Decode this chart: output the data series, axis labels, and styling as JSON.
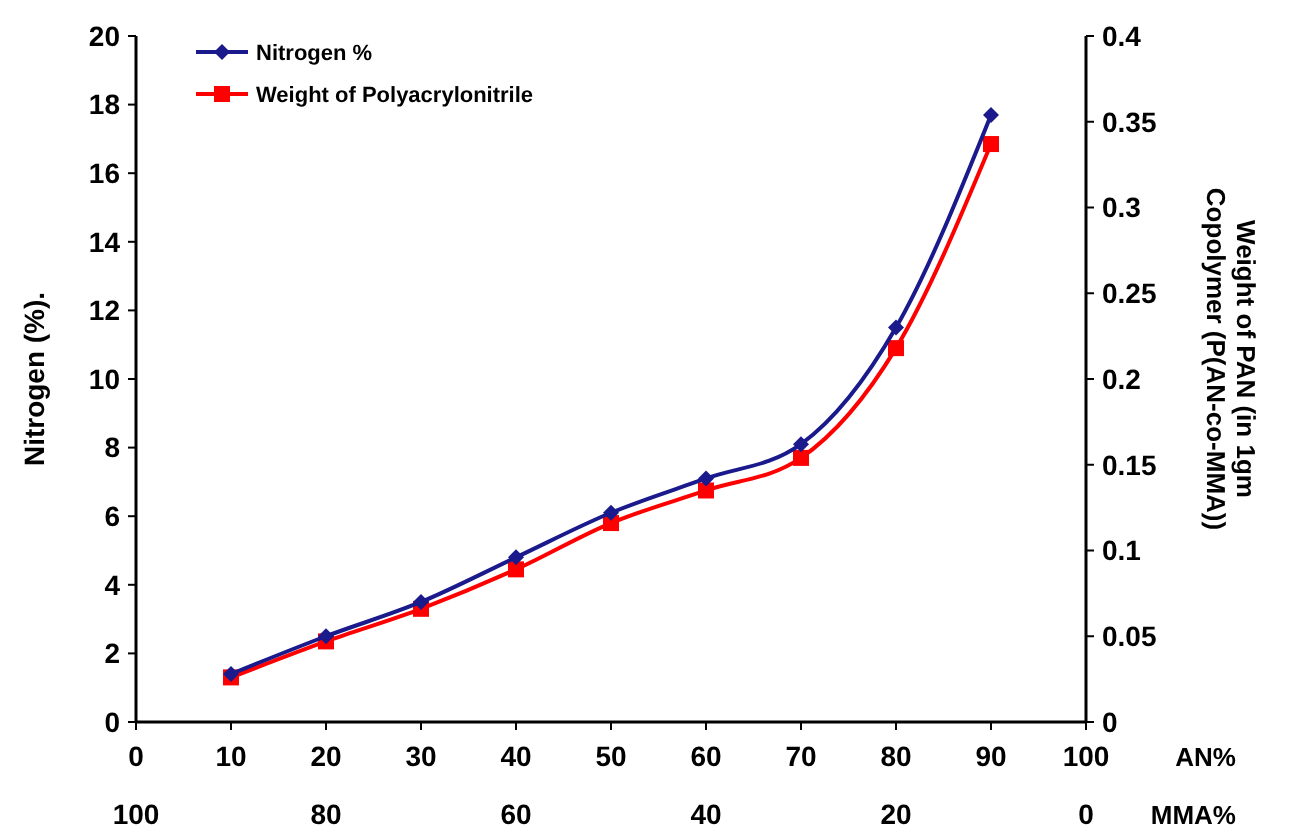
{
  "chart_data": {
    "type": "line",
    "xlabel": "AN%",
    "ylabel": "Nitrogen (%).",
    "y2label": "Weight of PAN (in 1gm Copolymer (P(AN-co-MMA))",
    "x2label": "MMA%",
    "x": [
      10,
      20,
      30,
      40,
      50,
      60,
      70,
      80,
      90
    ],
    "series": [
      {
        "name": "Nitrogen %",
        "color": "#1a1a8c",
        "marker": "diamond",
        "values": [
          1.4,
          2.5,
          3.5,
          4.8,
          6.1,
          7.1,
          8.1,
          11.5,
          17.7
        ]
      },
      {
        "name": "Weight of Polyacrylonitrile",
        "color": "#ff0000",
        "marker": "square",
        "axis": "y2",
        "values": [
          0.026,
          0.047,
          0.066,
          0.089,
          0.116,
          0.135,
          0.154,
          0.218,
          0.337
        ]
      }
    ],
    "xlim": [
      0,
      100
    ],
    "xticks": [
      0,
      10,
      20,
      30,
      40,
      50,
      60,
      70,
      80,
      90,
      100
    ],
    "x2lim": [
      100,
      0
    ],
    "x2ticks": [
      100,
      80,
      60,
      40,
      20,
      0
    ],
    "ylim": [
      0,
      20
    ],
    "yticks": [
      0,
      2,
      4,
      6,
      8,
      10,
      12,
      14,
      16,
      18,
      20
    ],
    "y2lim": [
      0,
      0.4
    ],
    "y2ticks": [
      0,
      0.05,
      0.1,
      0.15,
      0.2,
      0.25,
      0.3,
      0.35,
      0.4
    ],
    "legend": "top left",
    "grid": false,
    "line_style": "solid"
  }
}
